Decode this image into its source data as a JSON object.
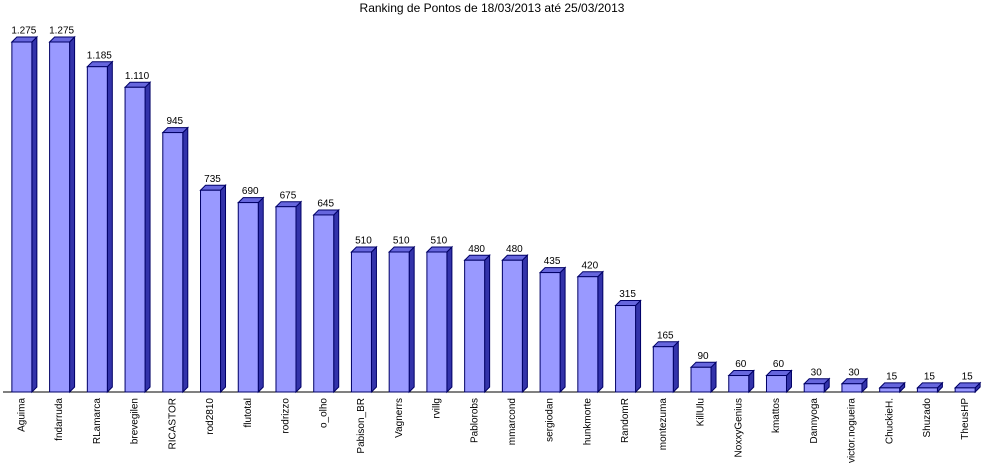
{
  "chart_data": {
    "type": "bar",
    "title": "Ranking de Pontos de 18/03/2013 até 25/03/2013",
    "categories": [
      "Aguima",
      "fndarruda",
      "RLamarca",
      "brevegilen",
      "RICASTOR",
      "rod2810",
      "flutotal",
      "rodrizzo",
      "o_olho",
      "Pabison_BR",
      "Vagnerrs",
      "rvillg",
      "Pablorobs",
      "mmarcond",
      "sergiodan",
      "hunkmorte",
      "RandomR",
      "montezuma",
      "KillUlu",
      "NoxxyGenius",
      "kmattos",
      "Dannyoga",
      "victor.nogueira",
      "ChuckieH.",
      "Shuzado",
      "TheusHP"
    ],
    "values": [
      1275,
      1275,
      1185,
      1110,
      945,
      735,
      690,
      675,
      645,
      510,
      510,
      510,
      480,
      480,
      435,
      420,
      315,
      165,
      90,
      60,
      60,
      30,
      30,
      15,
      15,
      15
    ],
    "value_labels": [
      "1.275",
      "1.275",
      "1.185",
      "1.110",
      "945",
      "735",
      "690",
      "675",
      "645",
      "510",
      "510",
      "510",
      "480",
      "480",
      "435",
      "420",
      "315",
      "165",
      "90",
      "60",
      "60",
      "30",
      "30",
      "15",
      "15",
      "15"
    ],
    "color": "#9999ff"
  }
}
